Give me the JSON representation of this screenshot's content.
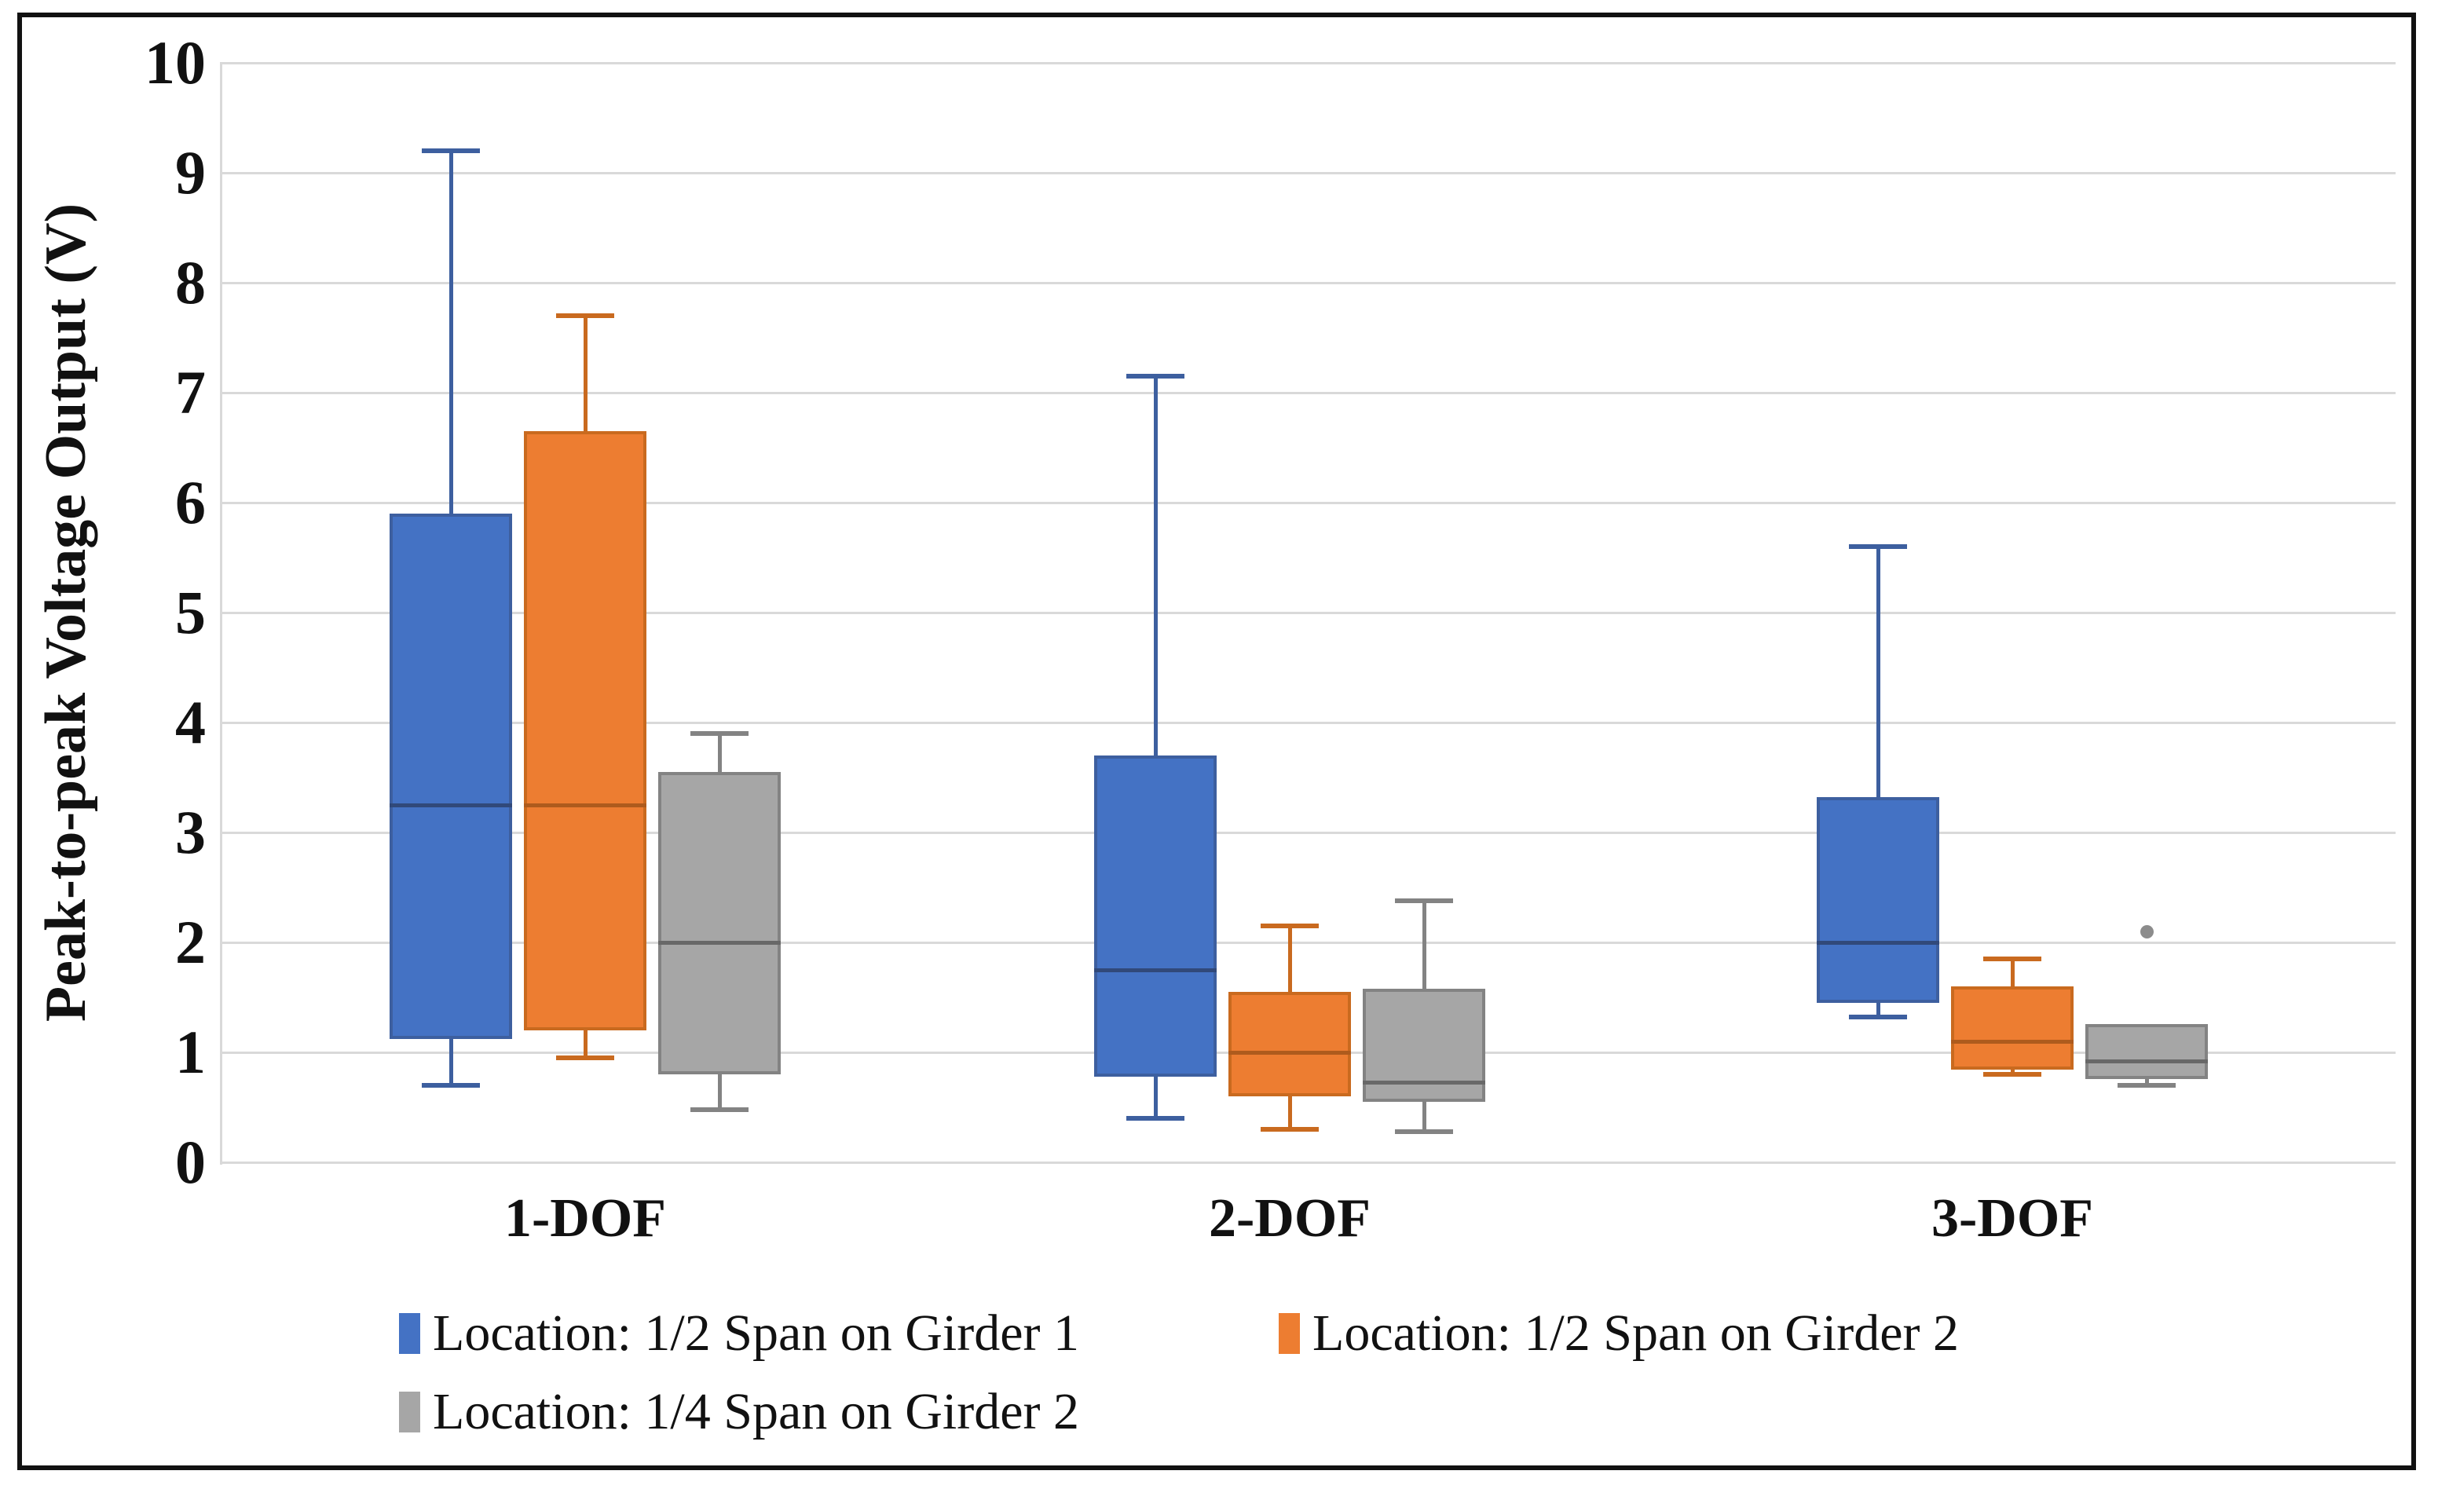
{
  "chart_data": {
    "type": "boxplot",
    "title": "",
    "xlabel": "",
    "ylabel": "Peak-to-peak Voltage Output (V)",
    "ylim": [
      0,
      10
    ],
    "yticks": [
      0,
      1,
      2,
      3,
      4,
      5,
      6,
      7,
      8,
      9,
      10
    ],
    "grid": true,
    "legend_position": "bottom",
    "categories": [
      "1-DOF",
      "2-DOF",
      "3-DOF"
    ],
    "series": [
      {
        "name": "Location: 1/2 Span on Girder 1",
        "fill": "#4472C4",
        "line": "#3D5F9F",
        "median_color": "#31497A",
        "boxes": [
          {
            "min": 0.7,
            "q1": 1.12,
            "median": 3.25,
            "q3": 5.9,
            "max": 9.2
          },
          {
            "min": 0.4,
            "q1": 0.78,
            "median": 1.75,
            "q3": 3.7,
            "max": 7.15
          },
          {
            "min": 1.32,
            "q1": 1.45,
            "median": 2.0,
            "q3": 3.32,
            "max": 5.6
          }
        ]
      },
      {
        "name": "Location: 1/2 Span on Girder 2",
        "fill": "#ED7D31",
        "line": "#C96A1F",
        "median_color": "#AE5B1D",
        "boxes": [
          {
            "min": 0.95,
            "q1": 1.2,
            "median": 3.25,
            "q3": 6.65,
            "max": 7.7
          },
          {
            "min": 0.3,
            "q1": 0.6,
            "median": 1.0,
            "q3": 1.55,
            "max": 2.15
          },
          {
            "min": 0.8,
            "q1": 0.84,
            "median": 1.1,
            "q3": 1.6,
            "max": 1.85
          }
        ]
      },
      {
        "name": "Location: 1/4 Span on Girder 2",
        "fill": "#A6A6A6",
        "line": "#838383",
        "median_color": "#686868",
        "boxes": [
          {
            "min": 0.48,
            "q1": 0.8,
            "median": 2.0,
            "q3": 3.55,
            "max": 3.9
          },
          {
            "min": 0.28,
            "q1": 0.55,
            "median": 0.73,
            "q3": 1.58,
            "max": 2.38
          },
          {
            "min": 0.7,
            "q1": 0.76,
            "median": 0.92,
            "q3": 1.26,
            "max": 1.26,
            "outliers": [
              2.1
            ]
          }
        ]
      }
    ],
    "outlier_color": "#8C8C8C"
  }
}
